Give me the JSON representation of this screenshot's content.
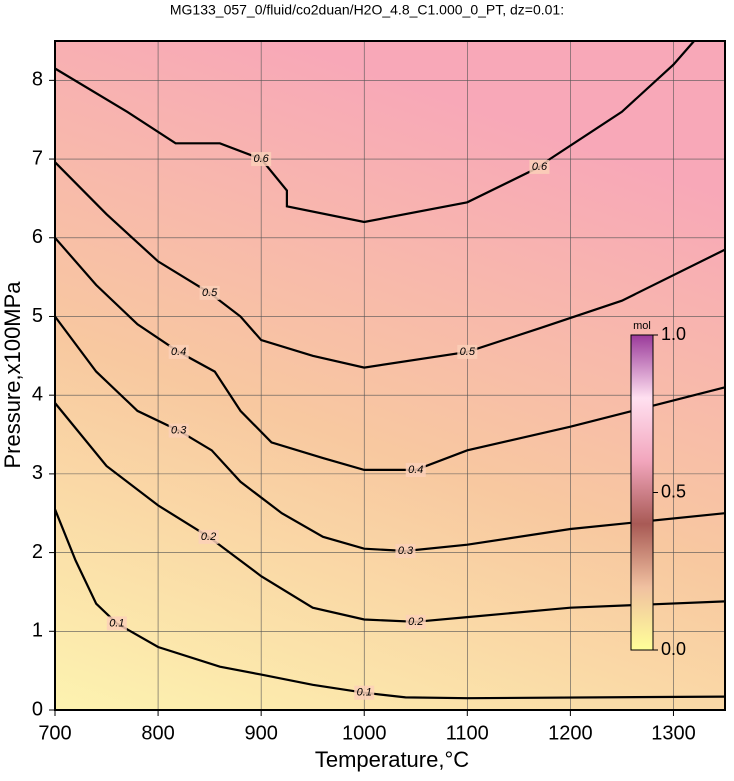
{
  "chart_data": {
    "type": "contour",
    "title": "MG133_057_0/fluid/co2duan/H2O_4.8_C1.000_0_PT, dz=0.01:",
    "xlabel": "Temperature,°C",
    "ylabel": "Pressure,x100MPa",
    "xlim": [
      700,
      1350
    ],
    "ylim": [
      0,
      8.5
    ],
    "xticks": [
      700,
      800,
      900,
      1000,
      1100,
      1200,
      1300
    ],
    "yticks": [
      0,
      1,
      2,
      3,
      4,
      5,
      6,
      7,
      8
    ],
    "grid": true,
    "series": [
      {
        "name": "0.1",
        "color": "#000000",
        "x": [
          700,
          720,
          740,
          760,
          800,
          860,
          900,
          950,
          1000,
          1040,
          1100,
          1350
        ],
        "y": [
          2.55,
          1.9,
          1.35,
          1.1,
          0.8,
          0.55,
          0.45,
          0.32,
          0.22,
          0.16,
          0.15,
          0.17
        ]
      },
      {
        "name": "0.2",
        "color": "#000000",
        "x": [
          700,
          750,
          800,
          849,
          900,
          950,
          1000,
          1050,
          1100,
          1200,
          1350
        ],
        "y": [
          3.9,
          3.1,
          2.6,
          2.2,
          1.7,
          1.3,
          1.15,
          1.12,
          1.18,
          1.3,
          1.38
        ]
      },
      {
        "name": "0.3",
        "color": "#000000",
        "x": [
          700,
          740,
          780,
          820,
          852,
          880,
          920,
          960,
          1000,
          1040,
          1100,
          1200,
          1350
        ],
        "y": [
          5.0,
          4.3,
          3.8,
          3.55,
          3.3,
          2.9,
          2.5,
          2.2,
          2.05,
          2.02,
          2.1,
          2.3,
          2.5
        ]
      },
      {
        "name": "0.4",
        "color": "#000000",
        "x": [
          700,
          740,
          780,
          820,
          855,
          880,
          910,
          960,
          1000,
          1050,
          1100,
          1200,
          1350
        ],
        "y": [
          6.0,
          5.4,
          4.9,
          4.55,
          4.3,
          3.8,
          3.4,
          3.2,
          3.05,
          3.05,
          3.3,
          3.6,
          4.1
        ]
      },
      {
        "name": "0.5",
        "color": "#000000",
        "x": [
          700,
          750,
          800,
          850,
          880,
          900,
          950,
          1000,
          1100,
          1170,
          1250,
          1350
        ],
        "y": [
          6.96,
          6.3,
          5.7,
          5.3,
          5.0,
          4.7,
          4.5,
          4.35,
          4.55,
          4.85,
          5.2,
          5.85
        ]
      },
      {
        "name": "0.6",
        "color": "#000000",
        "x": [
          700,
          770,
          817,
          860,
          900,
          925,
          925,
          1000,
          1100,
          1170,
          1180,
          1250,
          1300,
          1320
        ],
        "y": [
          8.15,
          7.6,
          7.2,
          7.2,
          7.0,
          6.6,
          6.4,
          6.2,
          6.45,
          6.9,
          7.0,
          7.6,
          8.2,
          8.5
        ]
      }
    ],
    "colorbar": {
      "label": "mol",
      "lim": [
        0,
        1
      ],
      "ticks": [
        {
          "value": 0,
          "label": "0.0"
        },
        0.5,
        {
          "value": 1,
          "label": "1.0"
        }
      ],
      "colors": [
        "#ffff99",
        "#f0c0a0",
        "#a85a55",
        "#f2a6bd",
        "#ffe0f0",
        "#9a3a9a"
      ]
    },
    "background_colors": [
      "#fdf3b0",
      "#f8c8a0",
      "#f8a8b8"
    ]
  }
}
